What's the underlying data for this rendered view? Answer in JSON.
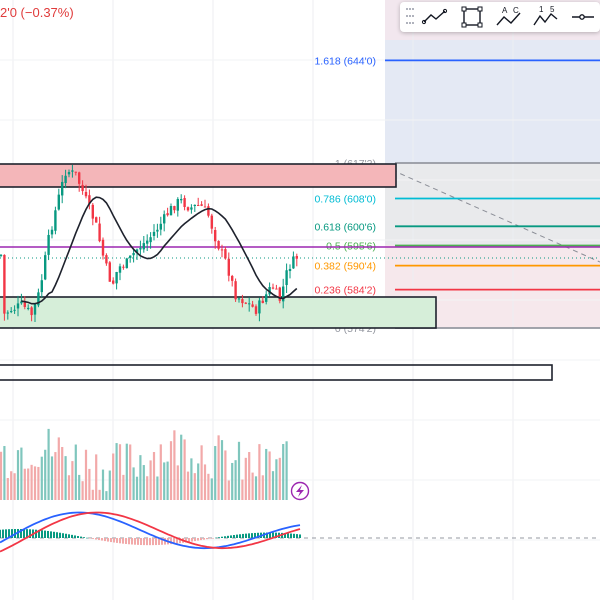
{
  "header": {
    "change_text": "2'0 (−0.37%)"
  },
  "toolbar": {
    "buttons": [
      {
        "name": "trend-line-tool-icon"
      },
      {
        "name": "rectangle-tool-icon"
      },
      {
        "name": "abcd-pattern-tool-icon",
        "labels": [
          "A",
          "C"
        ]
      },
      {
        "name": "elliott-wave-tool-icon",
        "labels": [
          "1",
          "5"
        ]
      },
      {
        "name": "horizontal-ray-tool-icon"
      }
    ]
  },
  "fibonacci": {
    "levels": [
      {
        "ratio": 1.618,
        "label": "1.618 (644'0)",
        "color": "#2962ff",
        "price": 644.0
      },
      {
        "ratio": 1,
        "label": "1 (617'2)",
        "color": "#9598a1",
        "price": 617.25
      },
      {
        "ratio": 0.786,
        "label": "0.786 (608'0)",
        "color": "#00bcd4",
        "price": 608.0
      },
      {
        "ratio": 0.618,
        "label": "0.618 (600'6)",
        "color": "#089981",
        "price": 600.75
      },
      {
        "ratio": 0.5,
        "label": "0.5 (595'6)",
        "color": "#4caf50",
        "price": 595.75
      },
      {
        "ratio": 0.382,
        "label": "0.382 (590'4)",
        "color": "#ff9800",
        "price": 590.5
      },
      {
        "ratio": 0.236,
        "label": "0.236 (584'2)",
        "color": "#f23645",
        "price": 584.25
      },
      {
        "ratio": 0,
        "label": "0 (574'2)",
        "color": "#9598a1",
        "price": 574.25
      }
    ]
  },
  "colors": {
    "up": "#089981",
    "down": "#f23645",
    "up_volume": "#7fc6bd",
    "down_volume": "#f2a9a9",
    "moving_average": "#1e222d",
    "macd_line": "#2962ff",
    "signal_line": "#f23645",
    "resistance_zone": "#f4b6b9",
    "support_zone": "#d6eed9",
    "horizontal_line": "#9c27b0"
  },
  "indicators": {
    "lightning_icon": "lightning-icon"
  }
}
